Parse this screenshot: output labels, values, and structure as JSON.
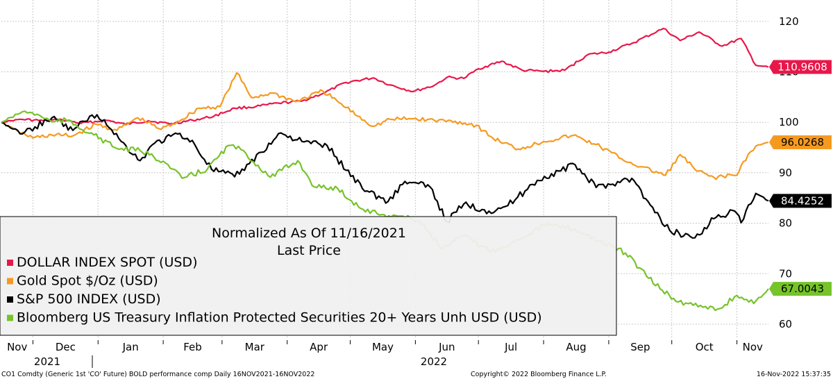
{
  "chart_data": {
    "type": "line",
    "title": "Normalized As Of 11/16/2021",
    "subtitle": "Last Price",
    "ylim": [
      58,
      124
    ],
    "yticks": [
      60,
      70,
      80,
      90,
      100,
      110,
      120
    ],
    "x_months": [
      "Nov",
      "Dec",
      "Jan",
      "Feb",
      "Mar",
      "Apr",
      "May",
      "Jun",
      "Jul",
      "Aug",
      "Sep",
      "Oct",
      "Nov"
    ],
    "x_years": [
      "2021",
      "2022"
    ],
    "x_range": [
      "2021-11-16",
      "2022-11-16"
    ],
    "grid": true,
    "legend": "bottom-left",
    "series": [
      {
        "name": "DOLLAR INDEX SPOT (USD)",
        "color": "#e8174a",
        "last_label": "110.9608",
        "points": [
          [
            "2021-11-16",
            100
          ],
          [
            "2021-11-25",
            100.6
          ],
          [
            "2021-12-06",
            100.3
          ],
          [
            "2021-12-15",
            100.5
          ],
          [
            "2021-12-24",
            99.8
          ],
          [
            "2022-01-05",
            100.4
          ],
          [
            "2022-01-14",
            99.6
          ],
          [
            "2022-01-25",
            100.3
          ],
          [
            "2022-02-04",
            99.7
          ],
          [
            "2022-02-15",
            100.4
          ],
          [
            "2022-02-25",
            101.2
          ],
          [
            "2022-03-07",
            102.8
          ],
          [
            "2022-03-17",
            103.1
          ],
          [
            "2022-03-28",
            103.8
          ],
          [
            "2022-04-08",
            104.2
          ],
          [
            "2022-04-19",
            105.9
          ],
          [
            "2022-04-29",
            107.9
          ],
          [
            "2022-05-12",
            108.8
          ],
          [
            "2022-05-20",
            107.4
          ],
          [
            "2022-05-31",
            106.1
          ],
          [
            "2022-06-10",
            107.3
          ],
          [
            "2022-06-16",
            108.9
          ],
          [
            "2022-06-24",
            108.7
          ],
          [
            "2022-07-01",
            110.6
          ],
          [
            "2022-07-12",
            112.1
          ],
          [
            "2022-07-22",
            110.3
          ],
          [
            "2022-08-01",
            110.1
          ],
          [
            "2022-08-11",
            110.3
          ],
          [
            "2022-08-22",
            113.4
          ],
          [
            "2022-09-01",
            113.9
          ],
          [
            "2022-09-13",
            115.8
          ],
          [
            "2022-09-27",
            118.6
          ],
          [
            "2022-10-05",
            116.2
          ],
          [
            "2022-10-14",
            117.9
          ],
          [
            "2022-10-25",
            115.1
          ],
          [
            "2022-11-03",
            116.6
          ],
          [
            "2022-11-10",
            111.3
          ],
          [
            "2022-11-16",
            110.96
          ]
        ]
      },
      {
        "name": "Gold Spot $/Oz (USD)",
        "color": "#f59a20",
        "last_label": "96.0268",
        "points": [
          [
            "2021-11-16",
            100
          ],
          [
            "2021-11-24",
            98.2
          ],
          [
            "2021-12-01",
            96.9
          ],
          [
            "2021-12-10",
            97.5
          ],
          [
            "2021-12-20",
            97.3
          ],
          [
            "2021-12-31",
            99.6
          ],
          [
            "2022-01-10",
            98.4
          ],
          [
            "2022-01-20",
            100.9
          ],
          [
            "2022-01-31",
            98.6
          ],
          [
            "2022-02-10",
            100.6
          ],
          [
            "2022-02-18",
            102.8
          ],
          [
            "2022-02-28",
            103.1
          ],
          [
            "2022-03-08",
            109.8
          ],
          [
            "2022-03-15",
            104.9
          ],
          [
            "2022-03-25",
            105.8
          ],
          [
            "2022-04-05",
            104.1
          ],
          [
            "2022-04-18",
            106.2
          ],
          [
            "2022-04-29",
            102.9
          ],
          [
            "2022-05-12",
            99.2
          ],
          [
            "2022-05-20",
            100.6
          ],
          [
            "2022-05-31",
            100.7
          ],
          [
            "2022-06-10",
            100.4
          ],
          [
            "2022-06-20",
            100.2
          ],
          [
            "2022-06-30",
            99.4
          ],
          [
            "2022-07-08",
            96.8
          ],
          [
            "2022-07-20",
            94.7
          ],
          [
            "2022-08-01",
            96.2
          ],
          [
            "2022-08-15",
            97.4
          ],
          [
            "2022-08-26",
            95.6
          ],
          [
            "2022-09-07",
            92.8
          ],
          [
            "2022-09-16",
            91.2
          ],
          [
            "2022-09-28",
            89.5
          ],
          [
            "2022-10-05",
            93.6
          ],
          [
            "2022-10-13",
            90.3
          ],
          [
            "2022-10-21",
            89.1
          ],
          [
            "2022-11-01",
            89.5
          ],
          [
            "2022-11-04",
            92.2
          ],
          [
            "2022-11-10",
            95.3
          ],
          [
            "2022-11-16",
            96.03
          ]
        ]
      },
      {
        "name": "S&P 500 INDEX (USD)",
        "color": "#000000",
        "last_label": "84.4252",
        "points": [
          [
            "2021-11-16",
            100
          ],
          [
            "2021-11-26",
            97.7
          ],
          [
            "2021-12-02",
            99.1
          ],
          [
            "2021-12-10",
            100.9
          ],
          [
            "2021-12-20",
            98.4
          ],
          [
            "2021-12-28",
            101.2
          ],
          [
            "2022-01-04",
            100.5
          ],
          [
            "2022-01-12",
            96.2
          ],
          [
            "2022-01-21",
            92.4
          ],
          [
            "2022-01-28",
            95.9
          ],
          [
            "2022-02-09",
            97.8
          ],
          [
            "2022-02-16",
            95.6
          ],
          [
            "2022-02-24",
            90.7
          ],
          [
            "2022-03-07",
            89.2
          ],
          [
            "2022-03-14",
            91.8
          ],
          [
            "2022-03-29",
            97.9
          ],
          [
            "2022-04-08",
            96.2
          ],
          [
            "2022-04-20",
            95.4
          ],
          [
            "2022-04-29",
            90.5
          ],
          [
            "2022-05-09",
            86.4
          ],
          [
            "2022-05-19",
            84.3
          ],
          [
            "2022-05-27",
            88.3
          ],
          [
            "2022-06-08",
            87.2
          ],
          [
            "2022-06-16",
            80.3
          ],
          [
            "2022-06-24",
            83.8
          ],
          [
            "2022-07-06",
            82.4
          ],
          [
            "2022-07-15",
            83.5
          ],
          [
            "2022-07-29",
            88.5
          ],
          [
            "2022-08-16",
            91.6
          ],
          [
            "2022-08-26",
            87.1
          ],
          [
            "2022-09-12",
            88.9
          ],
          [
            "2022-09-23",
            82.1
          ],
          [
            "2022-09-30",
            78.6
          ],
          [
            "2022-10-12",
            77.1
          ],
          [
            "2022-10-21",
            80.9
          ],
          [
            "2022-10-31",
            82.4
          ],
          [
            "2022-11-03",
            80.1
          ],
          [
            "2022-11-10",
            85.9
          ],
          [
            "2022-11-16",
            84.43
          ]
        ]
      },
      {
        "name": "Bloomberg US Treasury Inflation Protected Securities 20+ Years Unh USD (USD)",
        "color": "#76c32a",
        "last_label": "67.0043",
        "points": [
          [
            "2021-11-16",
            100
          ],
          [
            "2021-11-26",
            102.1
          ],
          [
            "2021-12-03",
            101.6
          ],
          [
            "2021-12-10",
            100.1
          ],
          [
            "2021-12-17",
            100.4
          ],
          [
            "2021-12-30",
            97.5
          ],
          [
            "2022-01-10",
            94.8
          ],
          [
            "2022-01-21",
            94.4
          ],
          [
            "2022-02-01",
            92.3
          ],
          [
            "2022-02-10",
            88.9
          ],
          [
            "2022-02-22",
            90.7
          ],
          [
            "2022-03-04",
            95.4
          ],
          [
            "2022-03-10",
            94.6
          ],
          [
            "2022-03-24",
            89.1
          ],
          [
            "2022-04-06",
            92.4
          ],
          [
            "2022-04-14",
            87.2
          ],
          [
            "2022-04-25",
            86.9
          ],
          [
            "2022-05-06",
            82.9
          ],
          [
            "2022-05-16",
            81.7
          ],
          [
            "2022-05-25",
            81.4
          ],
          [
            "2022-06-03",
            80.5
          ],
          [
            "2022-06-14",
            74.9
          ],
          [
            "2022-06-24",
            77.6
          ],
          [
            "2022-07-07",
            74.4
          ],
          [
            "2022-07-18",
            76.3
          ],
          [
            "2022-08-01",
            79.7
          ],
          [
            "2022-08-16",
            78.8
          ],
          [
            "2022-08-29",
            76.2
          ],
          [
            "2022-09-09",
            74.1
          ],
          [
            "2022-09-20",
            69.1
          ],
          [
            "2022-10-03",
            64.5
          ],
          [
            "2022-10-17",
            63.5
          ],
          [
            "2022-10-24",
            63.1
          ],
          [
            "2022-11-01",
            65.7
          ],
          [
            "2022-11-09",
            64.1
          ],
          [
            "2022-11-16",
            67.0
          ]
        ]
      }
    ]
  },
  "footer": {
    "left": "CO1 Comdty (Generic 1st 'CO' Future) BOLD performance comp  Daily 16NOV2021-16NOV2022",
    "center": "Copyright© 2022 Bloomberg Finance L.P.",
    "right": "16-Nov-2022 15:37:35"
  }
}
